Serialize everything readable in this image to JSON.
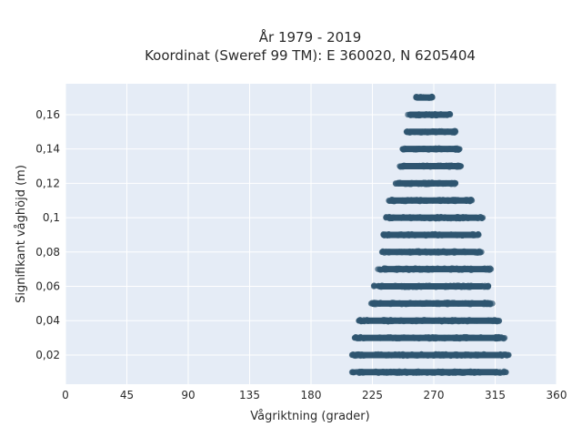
{
  "chart_data": {
    "type": "scatter",
    "title_line1": "År 1979 - 2019",
    "title_line2": "Koordinat (Sweref 99 TM): E 360020, N 6205404",
    "xlabel": "Vågriktning (grader)",
    "ylabel": "Signifikant våghöjd (m)",
    "xlim": [
      0,
      360
    ],
    "ylim": [
      0.003,
      0.178
    ],
    "xticks": [
      0,
      45,
      90,
      135,
      180,
      225,
      270,
      315,
      360
    ],
    "xtick_labels": [
      "0",
      "45",
      "90",
      "135",
      "180",
      "225",
      "270",
      "315",
      "360"
    ],
    "yticks": [
      0.02,
      0.04,
      0.06,
      0.08,
      0.1,
      0.12,
      0.14,
      0.16
    ],
    "ytick_labels": [
      "0,02",
      "0,04",
      "0,06",
      "0,08",
      "0,1",
      "0,12",
      "0,14",
      "0,16"
    ],
    "grid": true,
    "background_color": "#e5ecf6",
    "marker_color": "#2f5570",
    "bands": [
      {
        "y": 0.01,
        "x_min": 210,
        "x_max": 323
      },
      {
        "y": 0.02,
        "x_min": 210,
        "x_max": 325
      },
      {
        "y": 0.03,
        "x_min": 212,
        "x_max": 322
      },
      {
        "y": 0.04,
        "x_min": 215,
        "x_max": 318
      },
      {
        "y": 0.05,
        "x_min": 224,
        "x_max": 313
      },
      {
        "y": 0.06,
        "x_min": 226,
        "x_max": 310
      },
      {
        "y": 0.07,
        "x_min": 229,
        "x_max": 312
      },
      {
        "y": 0.08,
        "x_min": 232,
        "x_max": 305
      },
      {
        "y": 0.09,
        "x_min": 233,
        "x_max": 303
      },
      {
        "y": 0.1,
        "x_min": 235,
        "x_max": 306
      },
      {
        "y": 0.11,
        "x_min": 237,
        "x_max": 298
      },
      {
        "y": 0.12,
        "x_min": 242,
        "x_max": 286
      },
      {
        "y": 0.13,
        "x_min": 245,
        "x_max": 290
      },
      {
        "y": 0.14,
        "x_min": 247,
        "x_max": 289
      },
      {
        "y": 0.15,
        "x_min": 250,
        "x_max": 286
      },
      {
        "y": 0.16,
        "x_min": 251,
        "x_max": 282
      },
      {
        "y": 0.17,
        "x_min": 257,
        "x_max": 269
      }
    ]
  }
}
